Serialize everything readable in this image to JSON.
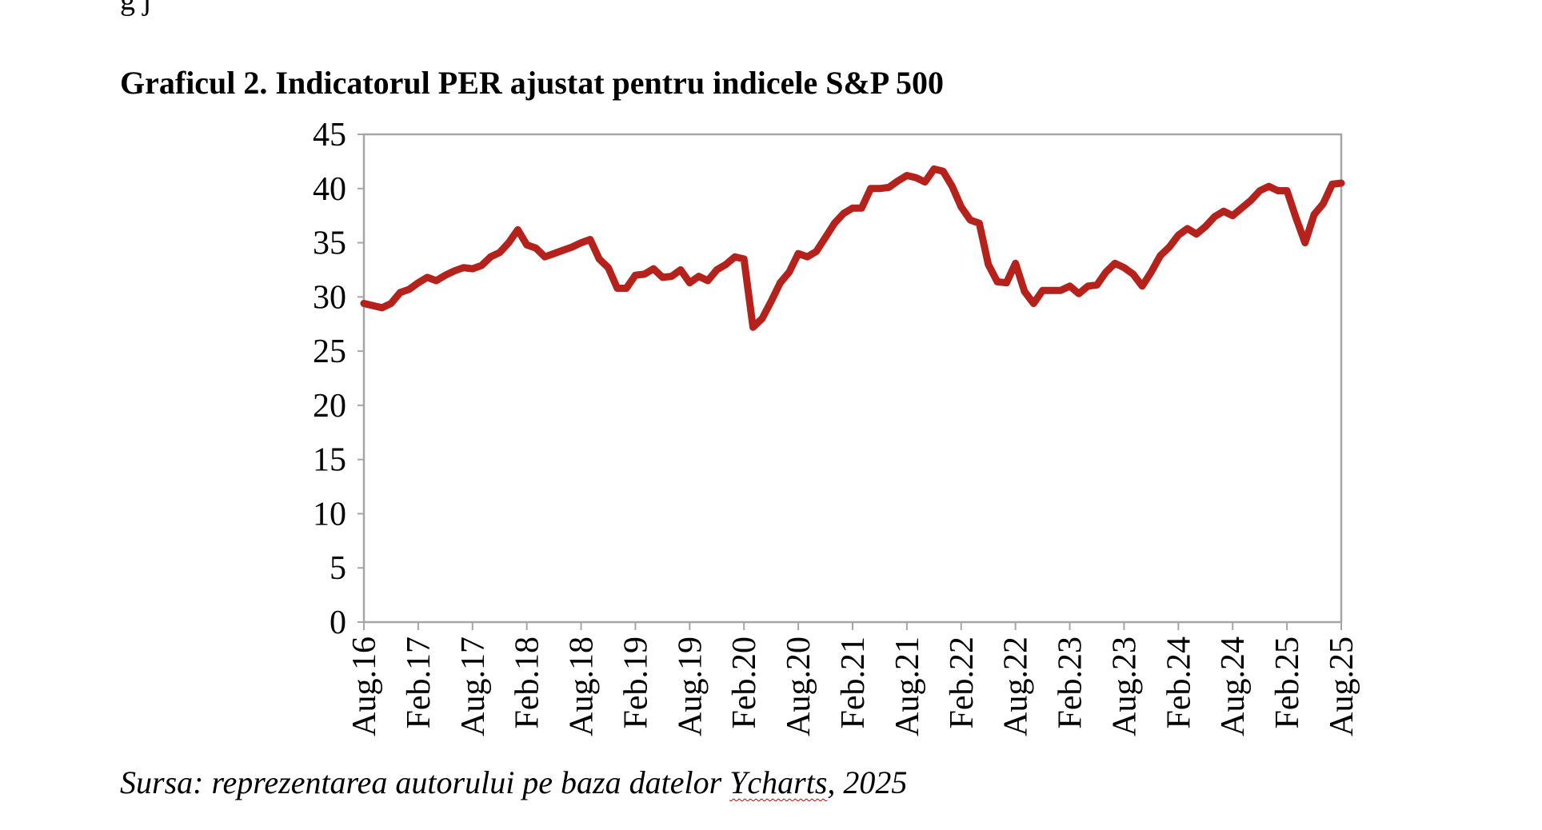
{
  "page": {
    "clipped_text": "g          j",
    "title": "Graficul 2. Indicatorul PER ajustat pentru indicele S&P 500",
    "source_parts": [
      "Sursa: reprezentarea autorului pe baza datelor ",
      "Ycharts",
      ", 2025"
    ]
  },
  "chart_data": {
    "type": "line",
    "title": "Graficul 2. Indicatorul PER ajustat pentru indicele S&P 500",
    "xlabel": "",
    "ylabel": "",
    "ylim": [
      0,
      45
    ],
    "yticks": [
      0,
      5,
      10,
      15,
      20,
      25,
      30,
      35,
      40,
      45
    ],
    "x_tick_labels": [
      "Aug.16",
      "Feb.17",
      "Aug.17",
      "Feb.18",
      "Aug.18",
      "Feb.19",
      "Aug.19",
      "Feb.20",
      "Aug.20",
      "Feb.21",
      "Aug.21",
      "Feb.22",
      "Aug.22",
      "Feb.23",
      "Aug.23",
      "Feb.24",
      "Aug.24",
      "Feb.25",
      "Aug.25"
    ],
    "grid": false,
    "legend": "none",
    "line_color": "#b5221c",
    "series": [
      {
        "values": [
          29.4,
          29.2,
          29.0,
          29.4,
          30.4,
          30.7,
          31.3,
          31.8,
          31.5,
          32.0,
          32.4,
          32.7,
          32.6,
          32.9,
          33.7,
          34.1,
          35.0,
          36.2,
          34.8,
          34.5,
          33.7,
          34.0,
          34.3,
          34.6,
          35.0,
          35.3,
          33.5,
          32.7,
          30.8,
          30.8,
          32.0,
          32.1,
          32.6,
          31.8,
          31.9,
          32.5,
          31.3,
          31.9,
          31.5,
          32.5,
          33.0,
          33.7,
          33.5,
          27.2,
          28.0,
          29.6,
          31.3,
          32.3,
          34.0,
          33.7,
          34.2,
          35.5,
          36.8,
          37.7,
          38.2,
          38.2,
          40.0,
          40.0,
          40.1,
          40.7,
          41.2,
          41.0,
          40.6,
          41.8,
          41.6,
          40.2,
          38.3,
          37.1,
          36.8,
          33.0,
          31.4,
          31.3,
          33.1,
          30.5,
          29.4,
          30.6,
          30.6,
          30.6,
          31.0,
          30.3,
          31.0,
          31.1,
          32.3,
          33.1,
          32.7,
          32.1,
          31.0,
          32.3,
          33.8,
          34.6,
          35.7,
          36.3,
          35.8,
          36.5,
          37.4,
          37.9,
          37.5,
          38.2,
          38.9,
          39.8,
          40.2,
          39.8,
          39.8,
          37.3,
          35.0,
          37.6,
          38.6,
          40.4,
          40.5
        ]
      }
    ]
  }
}
